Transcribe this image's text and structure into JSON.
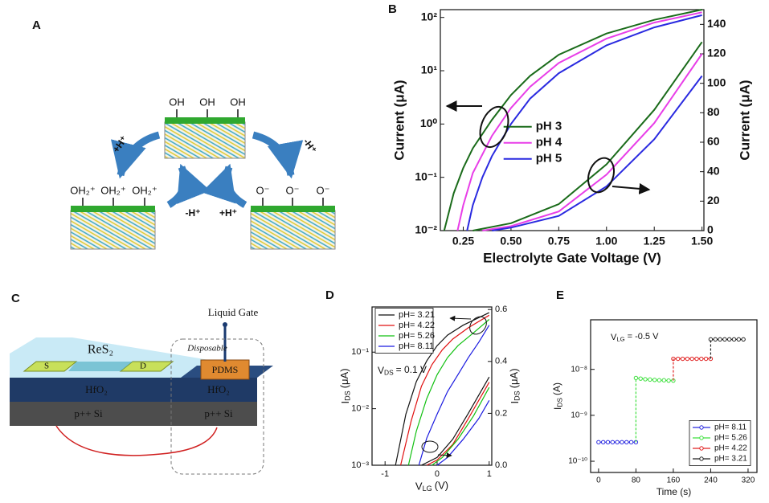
{
  "panels": {
    "A": {
      "label": "A",
      "top_groups": [
        "OH",
        "OH",
        "OH"
      ],
      "left_groups": [
        "OH₂⁺",
        "OH₂⁺",
        "OH₂⁺"
      ],
      "right_groups": [
        "O⁻",
        "O⁻",
        "O⁻"
      ],
      "arrows": [
        "+H⁺",
        "-H⁺",
        "-H⁺",
        "+H⁺"
      ]
    },
    "C": {
      "label": "C",
      "channel": "ReS₂",
      "source": "S",
      "drain": "D",
      "dielectric": [
        "HfO₂",
        "HfO₂"
      ],
      "substrate": [
        "p++ Si",
        "p++ Si"
      ],
      "gate": "Liquid Gate",
      "disposable": "Disposable",
      "well": "PDMS"
    }
  },
  "chart_data": [
    {
      "label": "B",
      "type": "line",
      "xlabel": "Electrolyte Gate Voltage (V)",
      "ylabel": "Current (μA)",
      "y2label": "Current (μA)",
      "ylog": true,
      "xlim": [
        0.13,
        1.51
      ],
      "ylim": [
        0.01,
        140
      ],
      "y2lim": [
        0,
        150
      ],
      "xticks": [
        0.25,
        {
          "value": 0.5,
          "label": "0.50"
        },
        0.75,
        {
          "value": 1,
          "label": "1.00"
        },
        1.25,
        {
          "value": 1.5,
          "label": "1.50"
        }
      ],
      "yticks": [
        {
          "value": 0.01,
          "label": "10⁻²"
        },
        {
          "value": 0.1,
          "label": "10⁻¹"
        },
        {
          "value": 1,
          "label": "10⁰"
        },
        {
          "value": 10,
          "label": "10¹"
        },
        {
          "value": 100,
          "label": "10²"
        }
      ],
      "y2ticks": [
        0,
        20,
        40,
        60,
        80,
        100,
        120,
        140
      ],
      "legend": "center",
      "series": [
        {
          "name": "pH 3",
          "color": "#1a6b1a",
          "x": [
            0.15,
            0.2,
            0.25,
            0.3,
            0.4,
            0.5,
            0.6,
            0.75,
            1.0,
            1.25,
            1.5
          ],
          "values": [
            0.01,
            0.05,
            0.15,
            0.35,
            1.2,
            3.5,
            8,
            20,
            50,
            90,
            140
          ]
        },
        {
          "name": "pH 4",
          "color": "#e83ee8",
          "x": [
            0.22,
            0.25,
            0.3,
            0.4,
            0.5,
            0.6,
            0.75,
            1.0,
            1.25,
            1.5
          ],
          "values": [
            0.01,
            0.03,
            0.12,
            0.6,
            2,
            5,
            14,
            40,
            80,
            125
          ]
        },
        {
          "name": "pH 5",
          "color": "#2a2ae0",
          "x": [
            0.27,
            0.3,
            0.35,
            0.4,
            0.5,
            0.6,
            0.75,
            1.0,
            1.25,
            1.5
          ],
          "values": [
            0.01,
            0.03,
            0.1,
            0.25,
            1,
            3,
            9,
            30,
            65,
            110
          ]
        },
        {
          "color": "#1a6b1a",
          "axis": "y2",
          "x": [
            0.3,
            0.5,
            0.75,
            1.0,
            1.25,
            1.5
          ],
          "values": [
            0,
            5,
            18,
            45,
            82,
            128
          ]
        },
        {
          "color": "#e83ee8",
          "axis": "y2",
          "x": [
            0.35,
            0.5,
            0.75,
            1.0,
            1.25,
            1.5
          ],
          "values": [
            0,
            3,
            13,
            38,
            73,
            120
          ]
        },
        {
          "color": "#2a2ae0",
          "axis": "y2",
          "x": [
            0.4,
            0.5,
            0.75,
            1.0,
            1.25,
            1.5
          ],
          "values": [
            0,
            2,
            10,
            30,
            62,
            105
          ]
        }
      ]
    },
    {
      "label": "D",
      "type": "line",
      "xlabel": {
        "main": "V",
        "sub": "LG",
        "unit": "(V)"
      },
      "ylabel": {
        "main": "I",
        "sub": "DS",
        "unit": "(μA)"
      },
      "y2label": {
        "main": "I",
        "sub": "DS",
        "unit": "(μA)"
      },
      "annotation": {
        "main": "V",
        "sub": "DS",
        "unit": "= 0.1 V"
      },
      "ylog": true,
      "xlim": [
        -1.25,
        1.05
      ],
      "ylim": [
        0.001,
        0.63
      ],
      "y2lim": [
        0,
        0.61
      ],
      "xticks": [
        -1,
        0,
        1
      ],
      "yticks": [
        {
          "value": 0.001,
          "label": "10⁻³"
        },
        {
          "value": 0.01,
          "label": "10⁻²"
        },
        {
          "value": 0.1,
          "label": "10⁻¹"
        }
      ],
      "y2ticks": [
        {
          "value": 0,
          "label": "0.0"
        },
        0.2,
        0.4,
        0.6
      ],
      "legend": "upper left",
      "series": [
        {
          "name": "pH= 3.21",
          "color": "#111111",
          "x": [
            -0.8,
            -0.6,
            -0.4,
            -0.2,
            0,
            0.2,
            0.5,
            1
          ],
          "values": [
            0.001,
            0.008,
            0.03,
            0.07,
            0.13,
            0.2,
            0.3,
            0.5
          ]
        },
        {
          "name": "pH= 4.22",
          "color": "#e01010",
          "x": [
            -0.7,
            -0.5,
            -0.3,
            -0.1,
            0.1,
            0.3,
            0.6,
            1
          ],
          "values": [
            0.001,
            0.006,
            0.025,
            0.06,
            0.11,
            0.17,
            0.27,
            0.45
          ]
        },
        {
          "name": "pH= 5.26",
          "color": "#10c010",
          "x": [
            -0.55,
            -0.4,
            -0.2,
            0,
            0.2,
            0.4,
            0.7,
            1
          ],
          "values": [
            0.001,
            0.004,
            0.015,
            0.04,
            0.08,
            0.13,
            0.22,
            0.38
          ]
        },
        {
          "name": "pH= 8.11",
          "color": "#1a1ae0",
          "x": [
            -0.35,
            -0.2,
            0,
            0.2,
            0.4,
            0.6,
            0.8,
            1
          ],
          "values": [
            0.001,
            0.003,
            0.008,
            0.02,
            0.04,
            0.08,
            0.15,
            0.3
          ]
        },
        {
          "color": "#111111",
          "axis": "y2",
          "x": [
            -0.3,
            0,
            0.3,
            0.6,
            1
          ],
          "values": [
            0,
            0.03,
            0.1,
            0.2,
            0.34
          ]
        },
        {
          "color": "#e01010",
          "axis": "y2",
          "x": [
            -0.2,
            0,
            0.3,
            0.6,
            1
          ],
          "values": [
            0,
            0.02,
            0.08,
            0.18,
            0.32
          ]
        },
        {
          "color": "#10c010",
          "axis": "y2",
          "x": [
            -0.1,
            0.1,
            0.4,
            0.7,
            1
          ],
          "values": [
            0,
            0.03,
            0.1,
            0.19,
            0.3
          ]
        },
        {
          "color": "#1a1ae0",
          "axis": "y2",
          "x": [
            0,
            0.2,
            0.5,
            0.8,
            1
          ],
          "values": [
            0,
            0.03,
            0.1,
            0.18,
            0.25
          ]
        }
      ]
    },
    {
      "label": "E",
      "type": "line",
      "markers": true,
      "step_connectors": true,
      "xlabel": "Time (s)",
      "ylabel": {
        "main": "I",
        "sub": "DS",
        "unit": "(A)"
      },
      "annotation": {
        "main": "V",
        "sub": "LG",
        "unit": "= -0.5 V"
      },
      "ylog": true,
      "xlim": [
        -17,
        339
      ],
      "ylim": [
        5.7e-11,
        1.2e-07
      ],
      "xticks": [
        0,
        80,
        160,
        240,
        320
      ],
      "yticks": [
        {
          "value": 1e-10,
          "label": "10⁻¹⁰"
        },
        {
          "value": 1e-09,
          "label": "10⁻⁹"
        },
        {
          "value": 1e-08,
          "label": "10⁻⁸"
        }
      ],
      "legend": "lower right",
      "series": [
        {
          "name": "pH= 8.11",
          "color": "#2a2ae0",
          "x": [
            0,
            10,
            20,
            30,
            40,
            50,
            60,
            70,
            80
          ],
          "values": [
            2.6e-10,
            2.6e-10,
            2.6e-10,
            2.6e-10,
            2.6e-10,
            2.6e-10,
            2.6e-10,
            2.6e-10,
            2.6e-10
          ]
        },
        {
          "name": "pH= 5.26",
          "color": "#3ee03e",
          "x": [
            80,
            90,
            100,
            110,
            120,
            130,
            140,
            150,
            160
          ],
          "values": [
            6.5e-09,
            6.3e-09,
            6.1e-09,
            6e-09,
            5.9e-09,
            5.8e-09,
            5.8e-09,
            5.7e-09,
            5.7e-09
          ]
        },
        {
          "name": "pH= 4.22",
          "color": "#e02020",
          "x": [
            160,
            170,
            180,
            190,
            200,
            210,
            220,
            230,
            240
          ],
          "values": [
            1.7e-08,
            1.7e-08,
            1.7e-08,
            1.7e-08,
            1.7e-08,
            1.7e-08,
            1.7e-08,
            1.7e-08,
            1.7e-08
          ]
        },
        {
          "name": "pH= 3.21",
          "color": "#222222",
          "x": [
            240,
            250,
            260,
            270,
            280,
            290,
            300,
            310
          ],
          "values": [
            4.5e-08,
            4.5e-08,
            4.5e-08,
            4.5e-08,
            4.5e-08,
            4.5e-08,
            4.5e-08,
            4.5e-08
          ]
        }
      ]
    }
  ]
}
